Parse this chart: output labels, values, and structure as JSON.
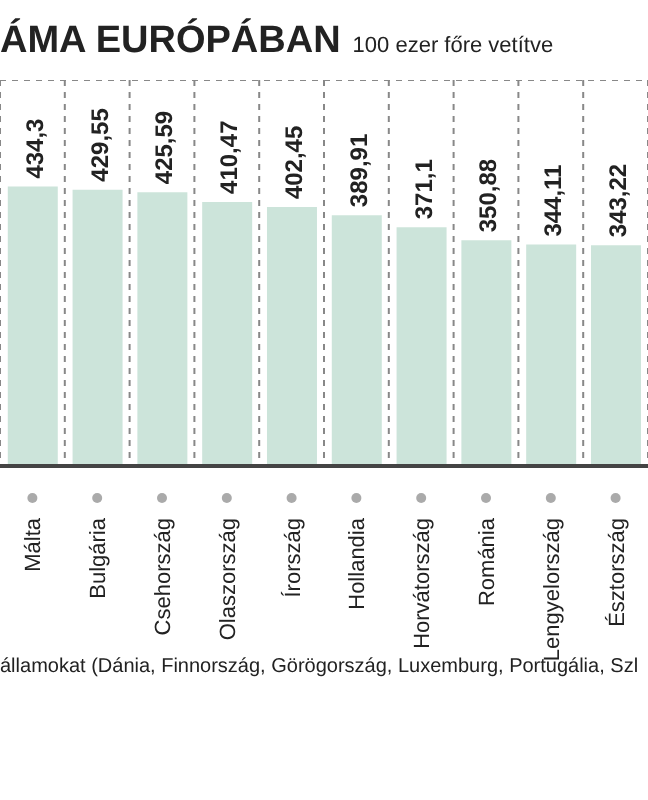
{
  "chart_data": {
    "type": "bar",
    "title": "ÁMA EURÓPÁBAN",
    "subtitle": "100 ezer főre vetítve",
    "categories": [
      "Málta",
      "Bulgária",
      "Csehország",
      "Olaszország",
      "Írország",
      "Hollandia",
      "Horvátország",
      "Románia",
      "Lengyelország",
      "Észtország"
    ],
    "values": [
      434.3,
      429.55,
      425.59,
      410.47,
      402.45,
      389.91,
      371.1,
      350.88,
      344.11,
      343.22
    ],
    "value_labels": [
      "434,3",
      "429,55",
      "425,59",
      "410,47",
      "402,45",
      "389,91",
      "371,1",
      "350,88",
      "344,11",
      "343,22"
    ],
    "color": "#cce4da",
    "grid": true,
    "line_style": "dashed",
    "tick_labels": "x",
    "annotations": [
      "államokat (Dánia, Finnország, Görögország, Luxemburg, Portugália, Szl"
    ]
  }
}
